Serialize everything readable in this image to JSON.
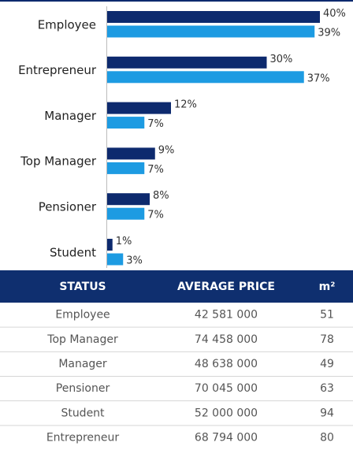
{
  "chart_data": {
    "type": "bar",
    "orientation": "horizontal",
    "categories": [
      "Employee",
      "Entrepreneur",
      "Manager",
      "Top Manager",
      "Pensioner",
      "Student"
    ],
    "series": [
      {
        "color": "#0d2a6e",
        "values": [
          40,
          30,
          12,
          9,
          8,
          1
        ],
        "value_labels": [
          "40%",
          "30%",
          "12%",
          "9%",
          "8%",
          "1%"
        ]
      },
      {
        "color": "#1d9be2",
        "values": [
          39,
          37,
          7,
          7,
          7,
          3
        ],
        "value_labels": [
          "39%",
          "37%",
          "7%",
          "7%",
          "7%",
          "3%"
        ]
      }
    ]
  },
  "table": {
    "header": [
      "STATUS",
      "AVERAGE PRICE",
      "m²"
    ],
    "rows": [
      [
        "Employee",
        "42 581 000",
        51
      ],
      [
        "Top Manager",
        "74 458 000",
        78
      ],
      [
        "Manager",
        "48 638 000",
        49
      ],
      [
        "Pensioner",
        "70 045 000",
        63
      ],
      [
        "Student",
        "52 000 000",
        94
      ],
      [
        "Entrepreneur",
        "68 794 000",
        80
      ]
    ]
  }
}
